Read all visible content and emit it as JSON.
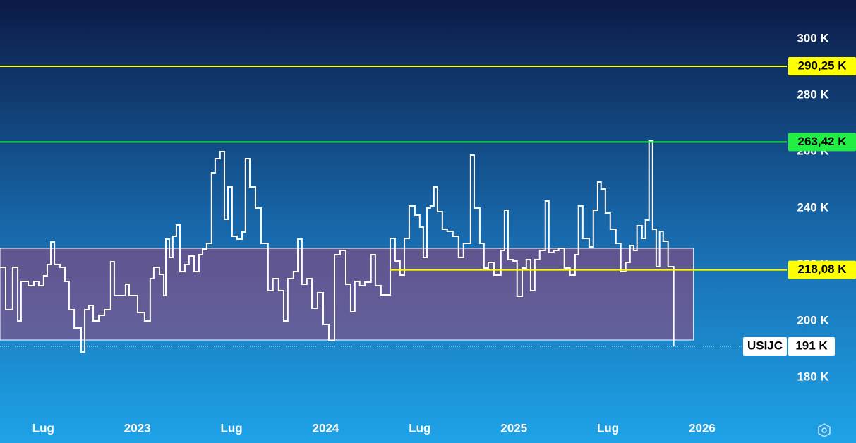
{
  "chart_data": {
    "type": "step",
    "xlim": [
      2022.27,
      2026.45
    ],
    "ylim": [
      166.25,
      313.75
    ],
    "xticks": [
      {
        "value": 2022.5,
        "label": "Lug"
      },
      {
        "value": 2023,
        "label": "2023"
      },
      {
        "value": 2023.5,
        "label": "Lug"
      },
      {
        "value": 2024,
        "label": "2024"
      },
      {
        "value": 2024.5,
        "label": "Lug"
      },
      {
        "value": 2025,
        "label": "2025"
      },
      {
        "value": 2025.5,
        "label": "Lug"
      },
      {
        "value": 2026,
        "label": "2026"
      }
    ],
    "yticks": [
      {
        "value": 180,
        "label": "180 K"
      },
      {
        "value": 200,
        "label": "200 K"
      },
      {
        "value": 220,
        "label": "220 K"
      },
      {
        "value": 240,
        "label": "240 K"
      },
      {
        "value": 260,
        "label": "260 K"
      },
      {
        "value": 280,
        "label": "280 K"
      },
      {
        "value": 300,
        "label": "300 K"
      }
    ],
    "series": [
      {
        "name": "USIJC",
        "color": "#ffffff",
        "last_value_label": "191 K",
        "x": [
          2022.27,
          2022.3,
          2022.337,
          2022.364,
          2022.382,
          2022.42,
          2022.45,
          2022.476,
          2022.502,
          2022.521,
          2022.54,
          2022.559,
          2022.589,
          2022.615,
          2022.637,
          2022.664,
          2022.701,
          2022.72,
          2022.742,
          2022.765,
          2022.795,
          2022.825,
          2022.858,
          2022.877,
          2022.915,
          2022.937,
          2022.956,
          2023.001,
          2023.038,
          2023.068,
          2023.087,
          2023.117,
          2023.14,
          2023.151,
          2023.17,
          2023.188,
          2023.207,
          2023.226,
          2023.252,
          2023.274,
          2023.301,
          2023.327,
          2023.346,
          2023.368,
          2023.394,
          2023.413,
          2023.439,
          2023.462,
          2023.481,
          2023.503,
          2023.529,
          2023.556,
          2023.574,
          2023.597,
          2023.627,
          2023.657,
          2023.694,
          2023.72,
          2023.75,
          2023.777,
          2023.799,
          2023.829,
          2023.852,
          2023.874,
          2023.9,
          2023.927,
          2023.957,
          2023.987,
          2024.017,
          2024.047,
          2024.077,
          2024.107,
          2024.133,
          2024.155,
          2024.181,
          2024.208,
          2024.241,
          2024.264,
          2024.294,
          2024.343,
          2024.369,
          2024.395,
          2024.418,
          2024.444,
          2024.474,
          2024.5,
          2024.519,
          2024.538,
          2024.556,
          2024.575,
          2024.594,
          2024.62,
          2024.646,
          2024.676,
          2024.706,
          2024.732,
          2024.77,
          2024.789,
          2024.819,
          2024.841,
          2024.864,
          2024.894,
          2024.931,
          2024.95,
          2024.969,
          2024.995,
          2025.017,
          2025.044,
          2025.066,
          2025.089,
          2025.111,
          2025.137,
          2025.167,
          2025.186,
          2025.212,
          2025.238,
          2025.268,
          2025.298,
          2025.325,
          2025.343,
          2025.366,
          2025.4,
          2025.422,
          2025.445,
          2025.463,
          2025.486,
          2025.512,
          2025.542,
          2025.568,
          2025.594,
          2025.617,
          2025.636,
          2025.654,
          2025.681,
          2025.699,
          2025.718,
          2025.737,
          2025.756,
          2025.774,
          2025.793,
          2025.819,
          2025.849
        ],
        "values": [
          219,
          204,
          219,
          200,
          214,
          212.5,
          214,
          212.5,
          216,
          220,
          228,
          220,
          219,
          214,
          204,
          197.5,
          189,
          204,
          205.5,
          200,
          202,
          204,
          221,
          209,
          209,
          213,
          209,
          203,
          200,
          215,
          219,
          216.5,
          209,
          229,
          222.5,
          230,
          234,
          217.5,
          220,
          223,
          217.5,
          223.5,
          225.5,
          227.5,
          252.5,
          257.5,
          260,
          236,
          247.5,
          230,
          229,
          231.5,
          257.5,
          247.5,
          240,
          227.5,
          210.75,
          215,
          210.75,
          200,
          215,
          217.5,
          229,
          213,
          215,
          204.5,
          210,
          198.75,
          193,
          223.5,
          225,
          213,
          203.25,
          214,
          212.5,
          213.75,
          223.5,
          212.5,
          209.25,
          229.25,
          221.25,
          216.25,
          229.25,
          240.75,
          237.5,
          233.25,
          222.5,
          240,
          240.75,
          247.5,
          238.75,
          232.5,
          231.75,
          230,
          222.5,
          227.5,
          258.75,
          240,
          227.5,
          218.75,
          220.75,
          216.25,
          225,
          239.25,
          221.75,
          221.25,
          208.75,
          218.75,
          221.75,
          210.75,
          221.75,
          225,
          242.5,
          224.25,
          225,
          225.75,
          218.75,
          216.25,
          223.5,
          240.75,
          229.25,
          226.25,
          239.25,
          249.25,
          246.75,
          238.25,
          232.5,
          227.5,
          217.5,
          220.75,
          226.75,
          225,
          233.75,
          229.25,
          235.75,
          263.75,
          232.5,
          219.25,
          231.75,
          228.25,
          219.25,
          191
        ]
      }
    ],
    "levels": [
      {
        "value": 290.25,
        "label": "290,25 K",
        "color": "#ffff00"
      },
      {
        "value": 263.42,
        "label": "263,42 K",
        "color": "#22ee44"
      },
      {
        "value": 218.08,
        "label": "218,08 K",
        "color": "#ffff00",
        "x_start": 2024.343
      }
    ],
    "range_box": {
      "x": [
        2022.27,
        2025.954
      ],
      "y": [
        193.25,
        225.75
      ]
    }
  }
}
